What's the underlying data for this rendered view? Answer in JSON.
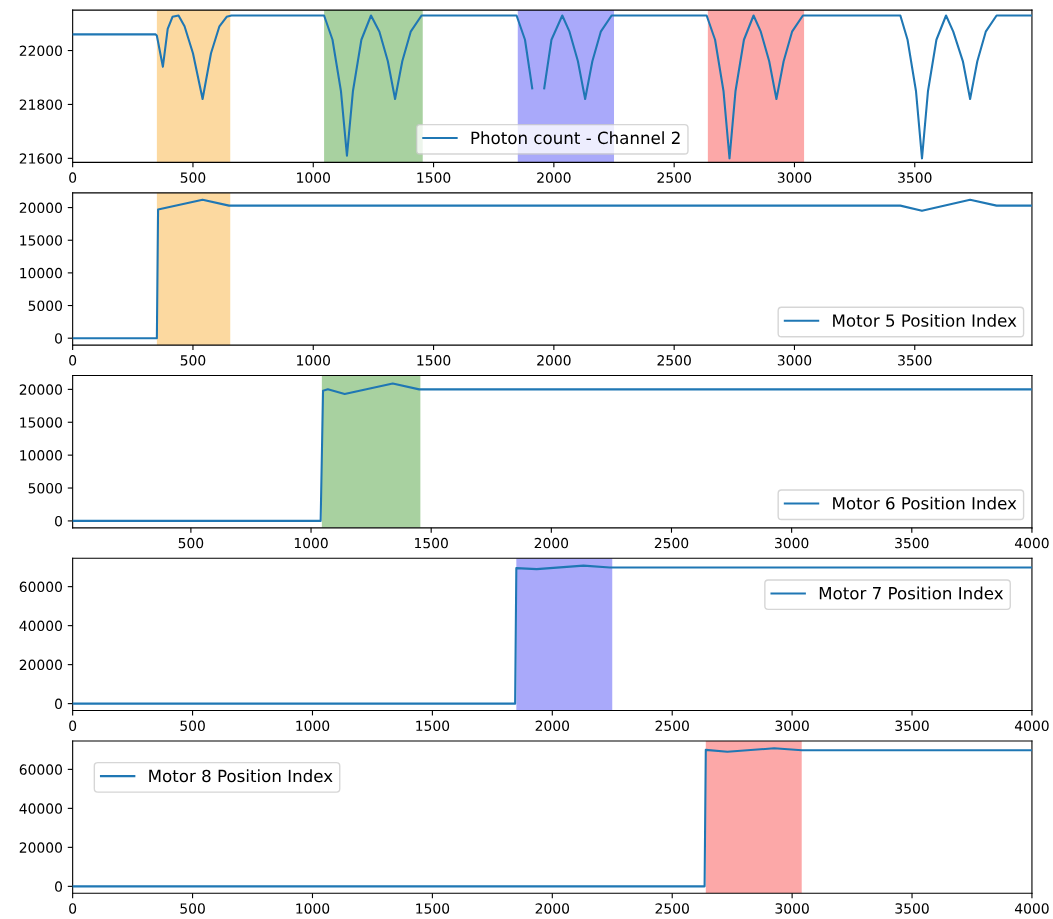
{
  "chart_data": [
    {
      "type": "line",
      "xlim": [
        0,
        3987
      ],
      "xticks": [
        0,
        500,
        1000,
        1500,
        2000,
        2500,
        3000,
        3500
      ],
      "ylim": [
        21585,
        22150
      ],
      "yticks": [
        21600,
        21800,
        22000
      ],
      "legend": "bottom",
      "grid": false,
      "bands": [
        {
          "axis": "x",
          "from": 350,
          "to": 655,
          "color": "#fcd9a0"
        },
        {
          "axis": "x",
          "from": 1045,
          "to": 1455,
          "color": "#a8d1a0"
        },
        {
          "axis": "x",
          "from": 1850,
          "to": 2250,
          "color": "#a9a9fa"
        },
        {
          "axis": "x",
          "from": 2640,
          "to": 3040,
          "color": "#fca8a8"
        }
      ],
      "series": [
        {
          "name": "Photon count - Channel 2",
          "color": "#1f77b4",
          "x": [
            0,
            345,
            350,
            375,
            395,
            415,
            440,
            465,
            500,
            540,
            575,
            610,
            640,
            660,
            1045,
            1080,
            1115,
            1140,
            1165,
            1200,
            1240,
            1275,
            1310,
            1340,
            1370,
            1405,
            1450,
            1845,
            1880,
            1910,
            1935,
            1960,
            1990,
            2035,
            2065,
            2100,
            2130,
            2160,
            2195,
            2240,
            2635,
            2670,
            2705,
            2730,
            2755,
            2790,
            2830,
            2860,
            2895,
            2925,
            2955,
            2990,
            3035,
            3440,
            3470,
            3505,
            3530,
            3555,
            3590,
            3630,
            3660,
            3700,
            3730,
            3760,
            3795,
            3840,
            3987
          ],
          "values": [
            22060,
            22060,
            22055,
            21940,
            22080,
            22125,
            22130,
            22090,
            21990,
            21820,
            21990,
            22090,
            22125,
            22130,
            22130,
            22040,
            21850,
            21610,
            21850,
            22040,
            22130,
            22070,
            21960,
            21820,
            21960,
            22070,
            22130,
            22130,
            22040,
            21860,
            null,
            21860,
            22040,
            22130,
            22070,
            21960,
            21820,
            21960,
            22070,
            22130,
            22130,
            22040,
            21850,
            21600,
            21850,
            22040,
            22130,
            22070,
            21960,
            21820,
            21960,
            22070,
            22130,
            22130,
            22040,
            21850,
            21600,
            21850,
            22040,
            22130,
            22070,
            21960,
            21820,
            21960,
            22070,
            22130,
            22130
          ]
        }
      ]
    },
    {
      "type": "line",
      "xlim": [
        0,
        3987
      ],
      "xticks": [
        0,
        500,
        1000,
        1500,
        2000,
        2500,
        3000,
        3500
      ],
      "ylim": [
        -1060,
        22260
      ],
      "yticks": [
        0,
        5000,
        10000,
        15000,
        20000
      ],
      "legend": "bottom right",
      "grid": false,
      "bands": [
        {
          "axis": "x",
          "from": 350,
          "to": 655,
          "color": "#fcd9a0"
        }
      ],
      "series": [
        {
          "name": "Motor 5 Position Index",
          "color": "#1f77b4",
          "x": [
            0,
            350,
            355,
            540,
            650,
            3440,
            3530,
            3730,
            3840,
            3987
          ],
          "values": [
            0,
            0,
            19700,
            21200,
            20300,
            20300,
            19500,
            21200,
            20300,
            20300
          ]
        }
      ]
    },
    {
      "type": "line",
      "xlim": [
        8,
        4000
      ],
      "xticks": [
        500,
        1000,
        1500,
        2000,
        2500,
        3000,
        3500,
        4000
      ],
      "ylim": [
        -1050,
        22100
      ],
      "yticks": [
        0,
        5000,
        10000,
        15000,
        20000
      ],
      "legend": "bottom right",
      "grid": false,
      "bands": [
        {
          "axis": "x",
          "from": 1045,
          "to": 1455,
          "color": "#a8d1a0"
        }
      ],
      "series": [
        {
          "name": "Motor 6 Position Index",
          "color": "#1f77b4",
          "x": [
            8,
            1040,
            1050,
            1070,
            1140,
            1240,
            1340,
            1450,
            4000
          ],
          "values": [
            0,
            0,
            19800,
            20000,
            19300,
            20100,
            20900,
            20000,
            20000
          ]
        }
      ]
    },
    {
      "type": "line",
      "xlim": [
        0,
        4000
      ],
      "xticks": [
        0,
        500,
        1000,
        1500,
        2000,
        2500,
        3000,
        3500,
        4000
      ],
      "ylim": [
        -3550,
        74550
      ],
      "yticks": [
        0,
        20000,
        40000,
        60000
      ],
      "legend": "top right",
      "grid": false,
      "bands": [
        {
          "axis": "x",
          "from": 1850,
          "to": 2250,
          "color": "#a9a9fa"
        }
      ],
      "series": [
        {
          "name": "Motor 7 Position Index",
          "color": "#1f77b4",
          "x": [
            0,
            1845,
            1850,
            1935,
            2130,
            2240,
            4000
          ],
          "values": [
            0,
            0,
            69500,
            69000,
            70800,
            69800,
            69800
          ]
        }
      ]
    },
    {
      "type": "line",
      "xlim": [
        0,
        4000
      ],
      "xticks": [
        0,
        500,
        1000,
        1500,
        2000,
        2500,
        3000,
        3500,
        4000
      ],
      "ylim": [
        -3550,
        74550
      ],
      "yticks": [
        0,
        20000,
        40000,
        60000
      ],
      "legend": "top left",
      "grid": false,
      "bands": [
        {
          "axis": "x",
          "from": 2640,
          "to": 3040,
          "color": "#fca8a8"
        }
      ],
      "series": [
        {
          "name": "Motor 8 Position Index",
          "color": "#1f77b4",
          "x": [
            0,
            2635,
            2640,
            2730,
            2925,
            3040,
            4000
          ],
          "values": [
            0,
            0,
            70000,
            69000,
            70800,
            69800,
            69800
          ]
        }
      ]
    }
  ]
}
